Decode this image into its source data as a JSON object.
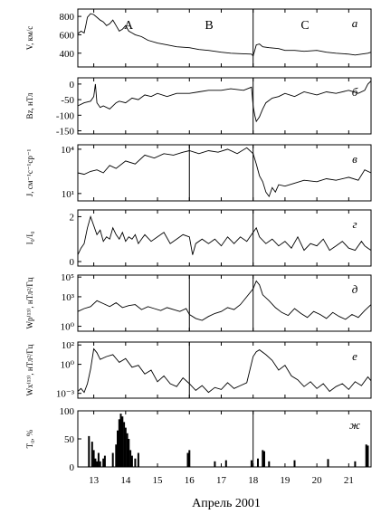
{
  "figure": {
    "x_axis": {
      "title": "Апрель 2001",
      "range": [
        12.5,
        21.7
      ],
      "tick_values": [
        13,
        14,
        15,
        16,
        17,
        18,
        19,
        20,
        21
      ],
      "tick_labels": [
        "13",
        "14",
        "15",
        "16",
        "17",
        "18",
        "19",
        "20",
        "21"
      ]
    },
    "region_labels": [
      "A",
      "B",
      "C"
    ]
  },
  "chart_data": [
    {
      "type": "line",
      "panel_label": "а",
      "ylabel": "V, км/с",
      "ylim": [
        250,
        880
      ],
      "yticks": [
        400,
        600,
        800
      ],
      "ytick_labels": [
        "400",
        "600",
        "800"
      ],
      "vlines": [
        18.0
      ],
      "series": [
        {
          "x": [
            12.5,
            12.6,
            12.7,
            12.75,
            12.8,
            12.9,
            13.0,
            13.1,
            13.2,
            13.3,
            13.4,
            13.5,
            13.6,
            13.7,
            13.8,
            13.9,
            14.0,
            14.1,
            14.2,
            14.3,
            14.5,
            14.7,
            15.0,
            15.3,
            15.6,
            16.0,
            16.3,
            16.6,
            17.0,
            17.3,
            17.6,
            17.95,
            18.0,
            18.05,
            18.1,
            18.2,
            18.3,
            18.5,
            18.8,
            19.0,
            19.3,
            19.6,
            20.0,
            20.3,
            20.6,
            21.0,
            21.2,
            21.4,
            21.6,
            21.7
          ],
          "y": [
            610,
            640,
            620,
            700,
            790,
            830,
            820,
            790,
            760,
            740,
            700,
            720,
            760,
            700,
            640,
            660,
            700,
            640,
            620,
            600,
            580,
            540,
            510,
            490,
            470,
            460,
            440,
            430,
            410,
            400,
            395,
            390,
            370,
            430,
            490,
            500,
            470,
            460,
            450,
            430,
            430,
            420,
            430,
            410,
            400,
            390,
            380,
            390,
            400,
            410
          ]
        }
      ]
    },
    {
      "type": "line",
      "panel_label": "б",
      "ylabel": "Bz, нТл",
      "ylim": [
        -160,
        20
      ],
      "yticks": [
        -150,
        -100,
        -50,
        0
      ],
      "ytick_labels": [
        "-150",
        "-100",
        "-50",
        "0"
      ],
      "vlines": [
        18.0
      ],
      "series": [
        {
          "x": [
            12.5,
            12.7,
            12.9,
            13.0,
            13.05,
            13.1,
            13.2,
            13.3,
            13.5,
            13.7,
            13.8,
            14.0,
            14.2,
            14.4,
            14.6,
            14.8,
            15.0,
            15.3,
            15.6,
            16.0,
            16.3,
            16.6,
            17.0,
            17.3,
            17.7,
            17.95,
            18.0,
            18.05,
            18.1,
            18.2,
            18.3,
            18.4,
            18.6,
            18.8,
            19.0,
            19.3,
            19.6,
            20.0,
            20.3,
            20.6,
            21.0,
            21.3,
            21.5,
            21.6,
            21.7
          ],
          "y": [
            -70,
            -60,
            -55,
            -40,
            0,
            -60,
            -75,
            -70,
            -80,
            -60,
            -55,
            -60,
            -45,
            -50,
            -35,
            -40,
            -30,
            -40,
            -30,
            -30,
            -25,
            -20,
            -20,
            -15,
            -20,
            -10,
            -70,
            -100,
            -120,
            -105,
            -80,
            -60,
            -45,
            -40,
            -30,
            -40,
            -25,
            -35,
            -25,
            -30,
            -20,
            -30,
            -20,
            0,
            10
          ]
        }
      ]
    },
    {
      "type": "line",
      "panel_label": "в",
      "ylabel": "J, см⁻¹с⁻¹ср⁻¹",
      "ylim": [
        0.5,
        4.3
      ],
      "log_scale": true,
      "yticks": [
        1,
        4
      ],
      "ytick_labels": [
        "10¹",
        "10⁴"
      ],
      "vlines": [
        16.0,
        18.0
      ],
      "series": [
        {
          "x": [
            12.5,
            12.7,
            12.9,
            13.1,
            13.3,
            13.5,
            13.7,
            14.0,
            14.3,
            14.6,
            14.9,
            15.2,
            15.5,
            15.8,
            16.0,
            16.3,
            16.6,
            16.9,
            17.2,
            17.5,
            17.8,
            18.0,
            18.1,
            18.2,
            18.3,
            18.4,
            18.5,
            18.6,
            18.7,
            18.8,
            19.0,
            19.3,
            19.6,
            20.0,
            20.3,
            20.6,
            21.0,
            21.3,
            21.5,
            21.7
          ],
          "y": [
            2.4,
            2.3,
            2.5,
            2.6,
            2.4,
            2.9,
            2.7,
            3.2,
            3.0,
            3.6,
            3.4,
            3.7,
            3.6,
            3.8,
            3.9,
            3.7,
            3.9,
            3.8,
            4.0,
            3.7,
            4.1,
            3.7,
            3.0,
            2.2,
            1.8,
            1.1,
            0.8,
            1.4,
            1.1,
            1.6,
            1.5,
            1.7,
            1.9,
            1.8,
            2.0,
            1.9,
            2.1,
            1.9,
            2.6,
            2.4
          ]
        }
      ]
    },
    {
      "type": "line",
      "panel_label": "г",
      "ylabel": "I₀/I₀",
      "ylim": [
        -0.2,
        2.3
      ],
      "yticks": [
        0,
        2
      ],
      "ytick_labels": [
        "0",
        "2"
      ],
      "vlines": [
        18.0
      ],
      "series": [
        {
          "x": [
            12.5,
            12.6,
            12.7,
            12.8,
            12.9,
            13.0,
            13.1,
            13.2,
            13.3,
            13.4,
            13.5,
            13.6,
            13.7,
            13.8,
            13.9,
            14.0,
            14.1,
            14.2,
            14.3,
            14.4,
            14.5,
            14.6,
            14.8,
            15.0,
            15.2,
            15.4,
            15.6,
            15.8,
            16.0,
            16.1,
            16.2,
            16.4,
            16.6,
            16.8,
            17.0,
            17.2,
            17.4,
            17.6,
            17.8,
            18.0,
            18.1,
            18.2,
            18.4,
            18.6,
            18.8,
            19.0,
            19.2,
            19.4,
            19.6,
            19.8,
            20.0,
            20.2,
            20.4,
            20.6,
            20.8,
            21.0,
            21.2,
            21.4,
            21.5,
            21.6,
            21.7
          ],
          "y": [
            0.3,
            0.6,
            0.8,
            1.5,
            2.0,
            1.6,
            1.2,
            1.4,
            0.9,
            1.1,
            1.0,
            1.5,
            1.2,
            1.0,
            1.3,
            0.9,
            1.1,
            1.0,
            1.2,
            0.8,
            1.0,
            1.2,
            0.9,
            1.1,
            1.3,
            0.8,
            1.0,
            1.2,
            1.1,
            0.3,
            0.8,
            1.0,
            0.8,
            1.0,
            0.7,
            1.1,
            0.8,
            1.1,
            0.9,
            1.3,
            1.5,
            1.1,
            0.8,
            1.0,
            0.7,
            0.9,
            0.6,
            1.1,
            0.5,
            0.8,
            0.7,
            1.0,
            0.5,
            0.7,
            0.9,
            0.6,
            0.5,
            0.9,
            0.7,
            0.6,
            0.5
          ]
        }
      ]
    },
    {
      "type": "line",
      "panel_label": "д",
      "ylabel": "Wp⁽¹³⁾, нТл²/Гц",
      "ylim": [
        -0.5,
        5.2
      ],
      "log_scale": true,
      "yticks": [
        0,
        3,
        5
      ],
      "ytick_labels": [
        "10⁰",
        "10³",
        "10⁵"
      ],
      "vlines": [
        16.0,
        18.0
      ],
      "series": [
        {
          "x": [
            12.5,
            12.7,
            12.9,
            13.1,
            13.3,
            13.5,
            13.7,
            13.9,
            14.1,
            14.3,
            14.5,
            14.7,
            14.9,
            15.1,
            15.3,
            15.5,
            15.7,
            15.9,
            16.0,
            16.2,
            16.4,
            16.6,
            16.8,
            17.0,
            17.2,
            17.4,
            17.6,
            17.8,
            18.0,
            18.1,
            18.2,
            18.3,
            18.5,
            18.7,
            18.9,
            19.1,
            19.3,
            19.5,
            19.7,
            19.9,
            20.1,
            20.3,
            20.5,
            20.7,
            20.9,
            21.1,
            21.3,
            21.5,
            21.7
          ],
          "y": [
            1.5,
            1.8,
            2.0,
            2.6,
            2.3,
            2.0,
            2.4,
            1.9,
            2.1,
            2.2,
            1.7,
            2.0,
            1.8,
            1.6,
            1.9,
            1.7,
            1.5,
            1.8,
            1.2,
            0.8,
            0.6,
            1.0,
            1.3,
            1.5,
            1.9,
            1.7,
            2.2,
            3.0,
            3.8,
            4.6,
            4.2,
            3.2,
            2.6,
            1.9,
            1.4,
            1.1,
            1.8,
            1.3,
            0.9,
            1.5,
            1.2,
            0.8,
            1.4,
            1.0,
            0.7,
            1.2,
            0.9,
            1.6,
            2.2
          ]
        }
      ]
    },
    {
      "type": "line",
      "panel_label": "е",
      "ylabel": "Wx⁽¹³⁾, нТл²/Гц",
      "ylim": [
        -3.5,
        2.3
      ],
      "log_scale": true,
      "yticks": [
        -3,
        0,
        2
      ],
      "ytick_labels": [
        "10⁻³",
        "10⁰",
        "10²"
      ],
      "vlines": [
        16.0
      ],
      "series": [
        {
          "x": [
            12.5,
            12.6,
            12.7,
            12.8,
            12.9,
            13.0,
            13.1,
            13.2,
            13.4,
            13.6,
            13.8,
            14.0,
            14.2,
            14.4,
            14.6,
            14.8,
            15.0,
            15.2,
            15.4,
            15.6,
            15.8,
            16.0,
            16.2,
            16.4,
            16.6,
            16.8,
            17.0,
            17.2,
            17.4,
            17.6,
            17.8,
            18.0,
            18.1,
            18.2,
            18.4,
            18.6,
            18.8,
            19.0,
            19.2,
            19.4,
            19.6,
            19.8,
            20.0,
            20.2,
            20.4,
            20.6,
            20.8,
            21.0,
            21.2,
            21.4,
            21.6,
            21.7
          ],
          "y": [
            -2.8,
            -2.5,
            -2.9,
            -2.0,
            -0.5,
            1.6,
            1.2,
            0.5,
            0.8,
            1.0,
            0.2,
            0.6,
            -0.3,
            -0.1,
            -1.0,
            -0.6,
            -1.8,
            -1.2,
            -2.0,
            -2.3,
            -1.4,
            -2.0,
            -2.7,
            -2.2,
            -2.9,
            -2.4,
            -2.6,
            -1.9,
            -2.5,
            -2.2,
            -1.9,
            0.8,
            1.3,
            1.5,
            1.0,
            0.4,
            -0.6,
            -0.1,
            -1.2,
            -1.6,
            -2.3,
            -1.8,
            -2.5,
            -2.0,
            -2.8,
            -2.3,
            -2.0,
            -2.6,
            -1.8,
            -2.2,
            -1.3,
            -1.7
          ]
        }
      ]
    },
    {
      "type": "bar",
      "panel_label": "ж",
      "ylabel": "T₀, %",
      "ylim": [
        0,
        100
      ],
      "yticks": [
        0,
        50,
        100
      ],
      "ytick_labels": [
        "0",
        "50",
        "100"
      ],
      "vlines": [
        18.0
      ],
      "x": [
        12.85,
        12.95,
        13.0,
        13.05,
        13.1,
        13.15,
        13.2,
        13.3,
        13.35,
        13.6,
        13.7,
        13.75,
        13.8,
        13.85,
        13.9,
        13.95,
        14.0,
        14.05,
        14.1,
        14.15,
        14.2,
        14.3,
        14.4,
        15.95,
        16.0,
        16.8,
        17.15,
        17.95,
        18.15,
        18.3,
        18.35,
        18.5,
        19.3,
        20.35,
        21.2,
        21.55,
        21.6
      ],
      "values": [
        55,
        45,
        30,
        15,
        10,
        25,
        10,
        15,
        20,
        25,
        40,
        65,
        85,
        95,
        90,
        80,
        70,
        60,
        50,
        30,
        20,
        15,
        25,
        25,
        30,
        10,
        12,
        12,
        15,
        30,
        28,
        10,
        12,
        14,
        10,
        40,
        38
      ]
    }
  ]
}
